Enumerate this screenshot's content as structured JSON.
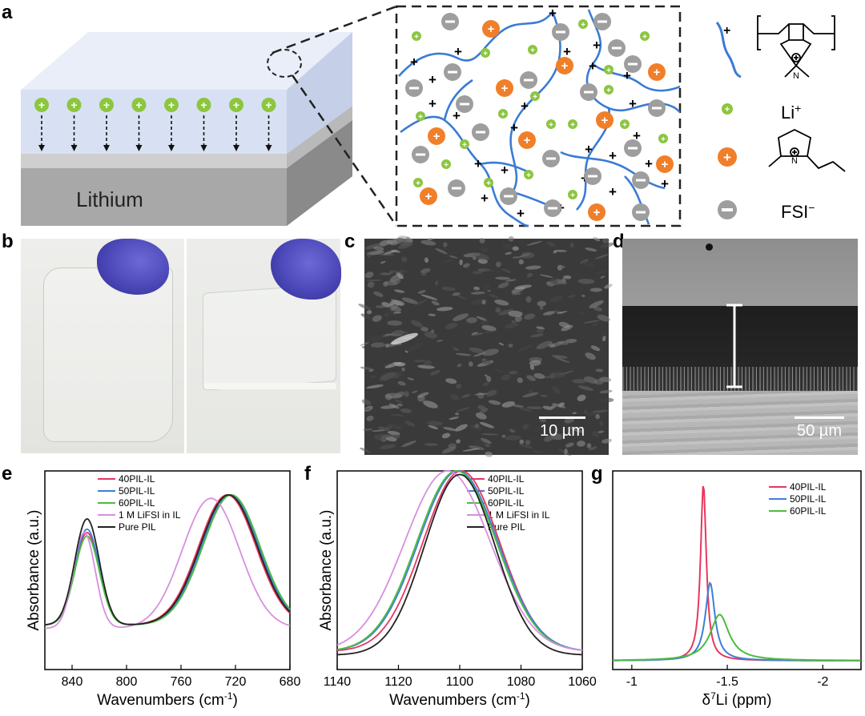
{
  "panels": {
    "a": "a",
    "b": "b",
    "c": "c",
    "d": "d",
    "e": "e",
    "f": "f",
    "g": "g"
  },
  "panel_a": {
    "substrate_label": "Lithium",
    "legend": {
      "li_label": "Li",
      "li_sup": "+",
      "fsi_label": "FSI",
      "fsi_sup": "−"
    },
    "colors": {
      "film": "#d6dff2",
      "li_ion": "#8cc63f",
      "cation": "#f07f2a",
      "anion": "#9e9e9e",
      "polymer": "#3a7bd5"
    }
  },
  "panel_c": {
    "scale": "10 µm"
  },
  "panel_d": {
    "scale": "50 µm"
  },
  "chart_data": [
    {
      "panel": "e",
      "type": "line",
      "xlabel": "Wavenumbers (cm",
      "xlabel_sup": "-1",
      "xlabel_end": ")",
      "ylabel": "Absorbance (a.u.)",
      "xlim": [
        860,
        680
      ],
      "xticks": [
        840,
        800,
        760,
        720,
        680
      ],
      "legend": [
        "40PIL-IL",
        "50PIL-IL",
        "60PIL-IL",
        "1 M LiFSI in IL",
        "Pure PIL"
      ],
      "series": [
        {
          "name": "40PIL-IL",
          "color": "#e8365d",
          "peaks": [
            [
              829,
              0.78,
              9
            ],
            [
              726,
              1.0,
              21
            ]
          ],
          "base": 0.02
        },
        {
          "name": "50PIL-IL",
          "color": "#3f7fd6",
          "peaks": [
            [
              829,
              0.8,
              9
            ],
            [
              724,
              1.0,
              21
            ]
          ],
          "base": 0.02
        },
        {
          "name": "60PIL-IL",
          "color": "#4cbb3f",
          "peaks": [
            [
              829,
              0.76,
              9
            ],
            [
              723,
              1.0,
              21
            ]
          ],
          "base": 0.02
        },
        {
          "name": "1 M LiFSI in IL",
          "color": "#d68fe0",
          "peaks": [
            [
              831,
              0.8,
              8
            ],
            [
              738,
              1.0,
              21
            ]
          ],
          "base": 0.0
        },
        {
          "name": "Pure PIL",
          "color": "#222222",
          "peaks": [
            [
              829,
              0.86,
              9
            ],
            [
              725,
              1.0,
              21
            ]
          ],
          "base": 0.02
        }
      ]
    },
    {
      "panel": "f",
      "type": "line",
      "xlabel": "Wavenumbers (cm",
      "xlabel_sup": "-1",
      "xlabel_end": ")",
      "ylabel": "Absorbance (a.u.)",
      "xlim": [
        1140,
        1060
      ],
      "xticks": [
        1140,
        1120,
        1100,
        1080,
        1060
      ],
      "legend": [
        "40PIL-IL",
        "50PIL-IL",
        "60PIL-IL",
        "1 M LiFSI in IL",
        "Pure PIL"
      ],
      "series": [
        {
          "name": "40PIL-IL",
          "color": "#e8365d",
          "center": 1099.5,
          "width": 12.5,
          "base": 0.1
        },
        {
          "name": "50PIL-IL",
          "color": "#3f7fd6",
          "center": 1100.5,
          "width": 13,
          "base": 0.1
        },
        {
          "name": "60PIL-IL",
          "color": "#4cbb3f",
          "center": 1101,
          "width": 13,
          "base": 0.1
        },
        {
          "name": "1 M LiFSI in IL",
          "color": "#d68fe0",
          "center": 1104,
          "width": 14,
          "base": 0.1
        },
        {
          "name": "Pure PIL",
          "color": "#222222",
          "center": 1100,
          "width": 11.5,
          "base": 0.08
        }
      ]
    },
    {
      "panel": "g",
      "type": "line",
      "xlabel": "δ",
      "xlabel_sup": "7",
      "xlabel_end": "Li (ppm)",
      "xlim": [
        -0.9,
        -2.2
      ],
      "xticks": [
        -1,
        -1.5,
        -2
      ],
      "xtick_labels": [
        "-1",
        "-1.5",
        "-2"
      ],
      "legend": [
        "40PIL-IL",
        "50PIL-IL",
        "60PIL-IL"
      ],
      "series": [
        {
          "name": "40PIL-IL",
          "color": "#e8365d",
          "center": -1.375,
          "width": 0.018,
          "height": 1.0
        },
        {
          "name": "50PIL-IL",
          "color": "#3f7fd6",
          "center": -1.41,
          "width": 0.03,
          "height": 0.44
        },
        {
          "name": "60PIL-IL",
          "color": "#4cbb3f",
          "center": -1.46,
          "width": 0.06,
          "height": 0.26
        }
      ]
    }
  ]
}
